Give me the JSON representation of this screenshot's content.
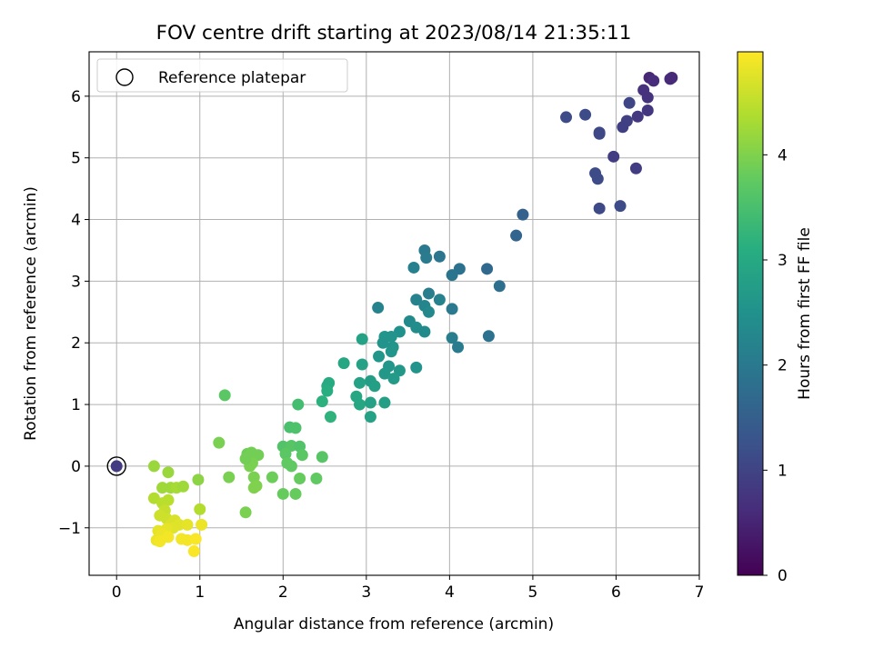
{
  "chart_data": {
    "type": "scatter",
    "title": "FOV centre drift starting at 2023/08/14 21:35:11",
    "xlabel": "Angular distance from reference (arcmin)",
    "ylabel": "Rotation from reference (arcmin)",
    "xlim": [
      -0.33,
      7.0
    ],
    "ylim": [
      -1.77,
      6.72
    ],
    "xticks": [
      "0",
      "1",
      "2",
      "3",
      "4",
      "5",
      "6",
      "7"
    ],
    "yticks": [
      "−1",
      "0",
      "1",
      "2",
      "3",
      "4",
      "5",
      "6"
    ],
    "grid": true,
    "legend": {
      "placement": "top-left",
      "entries": [
        "Reference platepar"
      ]
    },
    "colorbar": {
      "label": "Hours from first FF file",
      "range": [
        0,
        4.98
      ],
      "ticks": [
        "0",
        "1",
        "2",
        "3",
        "4"
      ],
      "colormap": "viridis"
    },
    "reference_point": {
      "x": 0,
      "y": 0
    },
    "series": [
      {
        "points": [
          {
            "x": 0.0,
            "y": 0.0,
            "h": 0.85
          },
          {
            "x": 6.4,
            "y": 6.3,
            "h": 0.55
          },
          {
            "x": 6.65,
            "y": 6.28,
            "h": 0.6
          },
          {
            "x": 6.67,
            "y": 6.3,
            "h": 0.58
          },
          {
            "x": 6.45,
            "y": 6.25,
            "h": 0.62
          },
          {
            "x": 6.33,
            "y": 6.1,
            "h": 0.7
          },
          {
            "x": 6.38,
            "y": 5.98,
            "h": 0.72
          },
          {
            "x": 6.38,
            "y": 5.77,
            "h": 0.78
          },
          {
            "x": 6.26,
            "y": 5.67,
            "h": 0.8
          },
          {
            "x": 6.16,
            "y": 5.89,
            "h": 1.05
          },
          {
            "x": 6.13,
            "y": 5.6,
            "h": 0.95
          },
          {
            "x": 6.08,
            "y": 5.5,
            "h": 0.92
          },
          {
            "x": 6.24,
            "y": 4.83,
            "h": 0.9
          },
          {
            "x": 5.97,
            "y": 5.02,
            "h": 0.88
          },
          {
            "x": 5.4,
            "y": 5.66,
            "h": 1.15
          },
          {
            "x": 5.63,
            "y": 5.7,
            "h": 1.12
          },
          {
            "x": 5.8,
            "y": 5.41,
            "h": 1.1
          },
          {
            "x": 5.8,
            "y": 5.39,
            "h": 1.08
          },
          {
            "x": 5.75,
            "y": 4.75,
            "h": 1.12
          },
          {
            "x": 5.78,
            "y": 4.66,
            "h": 1.14
          },
          {
            "x": 5.8,
            "y": 4.18,
            "h": 1.1
          },
          {
            "x": 6.05,
            "y": 4.22,
            "h": 1.13
          },
          {
            "x": 4.88,
            "y": 4.08,
            "h": 1.55
          },
          {
            "x": 4.8,
            "y": 3.74,
            "h": 1.6
          },
          {
            "x": 4.45,
            "y": 3.2,
            "h": 1.7
          },
          {
            "x": 4.6,
            "y": 2.92,
            "h": 1.8
          },
          {
            "x": 4.47,
            "y": 2.11,
            "h": 1.85
          },
          {
            "x": 4.12,
            "y": 3.2,
            "h": 1.85
          },
          {
            "x": 4.03,
            "y": 3.1,
            "h": 1.9
          },
          {
            "x": 3.88,
            "y": 3.4,
            "h": 1.95
          },
          {
            "x": 3.7,
            "y": 3.5,
            "h": 2.0
          },
          {
            "x": 3.72,
            "y": 3.38,
            "h": 2.05
          },
          {
            "x": 3.57,
            "y": 3.22,
            "h": 2.15
          },
          {
            "x": 3.75,
            "y": 2.8,
            "h": 2.1
          },
          {
            "x": 3.88,
            "y": 2.7,
            "h": 2.2
          },
          {
            "x": 3.6,
            "y": 2.7,
            "h": 2.2
          },
          {
            "x": 3.7,
            "y": 2.6,
            "h": 2.25
          },
          {
            "x": 3.75,
            "y": 2.5,
            "h": 2.3
          },
          {
            "x": 4.03,
            "y": 2.55,
            "h": 2.0
          },
          {
            "x": 4.03,
            "y": 2.08,
            "h": 2.1
          },
          {
            "x": 4.1,
            "y": 1.93,
            "h": 2.05
          },
          {
            "x": 3.14,
            "y": 2.57,
            "h": 2.2
          },
          {
            "x": 3.52,
            "y": 2.35,
            "h": 2.35
          },
          {
            "x": 3.6,
            "y": 2.25,
            "h": 2.4
          },
          {
            "x": 3.7,
            "y": 2.18,
            "h": 2.35
          },
          {
            "x": 3.4,
            "y": 2.18,
            "h": 2.5
          },
          {
            "x": 3.22,
            "y": 2.1,
            "h": 2.6
          },
          {
            "x": 3.3,
            "y": 2.1,
            "h": 2.55
          },
          {
            "x": 3.2,
            "y": 2.0,
            "h": 2.55
          },
          {
            "x": 3.32,
            "y": 1.93,
            "h": 2.55
          },
          {
            "x": 3.3,
            "y": 1.86,
            "h": 2.6
          },
          {
            "x": 3.15,
            "y": 1.78,
            "h": 2.6
          },
          {
            "x": 2.95,
            "y": 2.06,
            "h": 2.85
          },
          {
            "x": 3.6,
            "y": 1.6,
            "h": 2.55
          },
          {
            "x": 3.27,
            "y": 1.62,
            "h": 2.6
          },
          {
            "x": 3.4,
            "y": 1.55,
            "h": 2.65
          },
          {
            "x": 3.22,
            "y": 1.5,
            "h": 2.65
          },
          {
            "x": 3.33,
            "y": 1.42,
            "h": 2.7
          },
          {
            "x": 3.05,
            "y": 1.38,
            "h": 2.75
          },
          {
            "x": 3.1,
            "y": 1.3,
            "h": 2.8
          },
          {
            "x": 2.92,
            "y": 1.35,
            "h": 2.85
          },
          {
            "x": 2.95,
            "y": 1.65,
            "h": 2.85
          },
          {
            "x": 2.73,
            "y": 1.67,
            "h": 2.95
          },
          {
            "x": 2.88,
            "y": 1.13,
            "h": 2.95
          },
          {
            "x": 2.92,
            "y": 1.0,
            "h": 2.95
          },
          {
            "x": 3.05,
            "y": 1.03,
            "h": 2.85
          },
          {
            "x": 3.22,
            "y": 1.03,
            "h": 2.8
          },
          {
            "x": 3.05,
            "y": 0.8,
            "h": 2.85
          },
          {
            "x": 2.55,
            "y": 1.35,
            "h": 3.05
          },
          {
            "x": 2.53,
            "y": 1.3,
            "h": 3.0
          },
          {
            "x": 2.53,
            "y": 1.22,
            "h": 3.1
          },
          {
            "x": 2.47,
            "y": 1.05,
            "h": 3.15
          },
          {
            "x": 2.57,
            "y": 0.8,
            "h": 3.2
          },
          {
            "x": 2.18,
            "y": 1.0,
            "h": 3.45
          },
          {
            "x": 2.08,
            "y": 0.63,
            "h": 3.5
          },
          {
            "x": 2.15,
            "y": 0.62,
            "h": 3.55
          },
          {
            "x": 1.3,
            "y": 1.15,
            "h": 3.7
          },
          {
            "x": 2.0,
            "y": 0.32,
            "h": 3.6
          },
          {
            "x": 2.1,
            "y": 0.33,
            "h": 3.65
          },
          {
            "x": 2.2,
            "y": 0.32,
            "h": 3.6
          },
          {
            "x": 2.23,
            "y": 0.18,
            "h": 3.7
          },
          {
            "x": 2.03,
            "y": 0.2,
            "h": 3.7
          },
          {
            "x": 2.05,
            "y": 0.05,
            "h": 3.75
          },
          {
            "x": 2.1,
            "y": 0.0,
            "h": 3.75
          },
          {
            "x": 2.47,
            "y": 0.15,
            "h": 3.65
          },
          {
            "x": 1.23,
            "y": 0.38,
            "h": 3.95
          },
          {
            "x": 1.57,
            "y": 0.2,
            "h": 3.85
          },
          {
            "x": 1.62,
            "y": 0.22,
            "h": 3.9
          },
          {
            "x": 1.7,
            "y": 0.18,
            "h": 3.9
          },
          {
            "x": 1.63,
            "y": 0.05,
            "h": 3.95
          },
          {
            "x": 1.6,
            "y": 0.0,
            "h": 3.95
          },
          {
            "x": 1.55,
            "y": 0.12,
            "h": 3.9
          },
          {
            "x": 1.35,
            "y": -0.18,
            "h": 3.95
          },
          {
            "x": 1.65,
            "y": -0.18,
            "h": 3.95
          },
          {
            "x": 1.65,
            "y": -0.35,
            "h": 4.0
          },
          {
            "x": 1.68,
            "y": -0.32,
            "h": 4.0
          },
          {
            "x": 1.55,
            "y": -0.75,
            "h": 3.95
          },
          {
            "x": 1.87,
            "y": -0.18,
            "h": 3.85
          },
          {
            "x": 2.0,
            "y": -0.45,
            "h": 3.8
          },
          {
            "x": 2.15,
            "y": -0.45,
            "h": 3.8
          },
          {
            "x": 2.2,
            "y": -0.2,
            "h": 3.8
          },
          {
            "x": 2.4,
            "y": -0.2,
            "h": 3.75
          },
          {
            "x": 0.45,
            "y": 0.0,
            "h": 4.2
          },
          {
            "x": 0.62,
            "y": -0.1,
            "h": 4.2
          },
          {
            "x": 0.55,
            "y": -0.35,
            "h": 4.25
          },
          {
            "x": 0.65,
            "y": -0.35,
            "h": 4.25
          },
          {
            "x": 0.72,
            "y": -0.35,
            "h": 4.3
          },
          {
            "x": 0.8,
            "y": -0.33,
            "h": 4.25
          },
          {
            "x": 0.98,
            "y": -0.22,
            "h": 4.1
          },
          {
            "x": 0.45,
            "y": -0.52,
            "h": 4.4
          },
          {
            "x": 0.55,
            "y": -0.6,
            "h": 4.45
          },
          {
            "x": 0.62,
            "y": -0.55,
            "h": 4.45
          },
          {
            "x": 0.58,
            "y": -0.72,
            "h": 4.55
          },
          {
            "x": 1.0,
            "y": -0.7,
            "h": 4.4
          },
          {
            "x": 0.52,
            "y": -0.8,
            "h": 4.6
          },
          {
            "x": 0.6,
            "y": -0.85,
            "h": 4.6
          },
          {
            "x": 0.7,
            "y": -0.88,
            "h": 4.7
          },
          {
            "x": 0.65,
            "y": -0.95,
            "h": 4.7
          },
          {
            "x": 0.75,
            "y": -0.95,
            "h": 4.75
          },
          {
            "x": 0.85,
            "y": -0.95,
            "h": 4.8
          },
          {
            "x": 0.68,
            "y": -1.0,
            "h": 4.75
          },
          {
            "x": 0.6,
            "y": -1.02,
            "h": 4.8
          },
          {
            "x": 1.02,
            "y": -0.95,
            "h": 4.85
          },
          {
            "x": 0.5,
            "y": -1.05,
            "h": 4.8
          },
          {
            "x": 0.55,
            "y": -1.1,
            "h": 4.85
          },
          {
            "x": 0.62,
            "y": -1.15,
            "h": 4.9
          },
          {
            "x": 0.78,
            "y": -1.18,
            "h": 4.9
          },
          {
            "x": 0.85,
            "y": -1.2,
            "h": 4.9
          },
          {
            "x": 0.95,
            "y": -1.18,
            "h": 4.95
          },
          {
            "x": 0.48,
            "y": -1.2,
            "h": 4.85
          },
          {
            "x": 0.52,
            "y": -1.22,
            "h": 4.9
          },
          {
            "x": 0.93,
            "y": -1.38,
            "h": 4.95
          }
        ]
      }
    ]
  }
}
